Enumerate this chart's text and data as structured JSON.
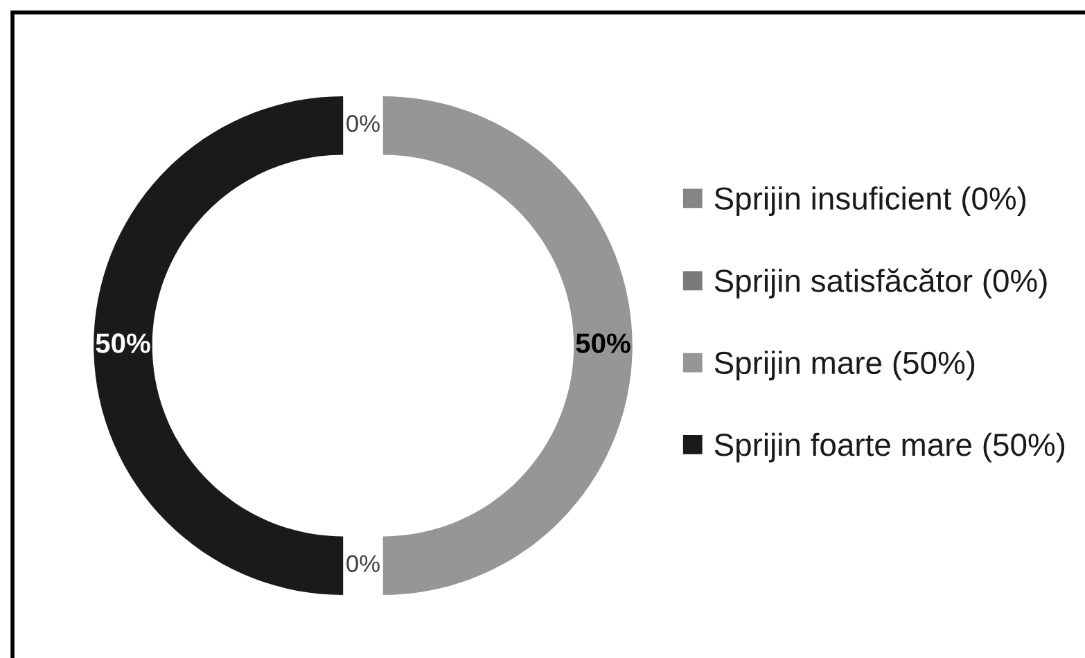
{
  "chart_data": {
    "type": "donut",
    "categories": [
      "Sprijin insuficient (0%)",
      "Sprijin satisfăcător (0%)",
      "Sprijin mare (50%)",
      "Sprijin foarte mare (50%)"
    ],
    "values": [
      0,
      0,
      50,
      50
    ],
    "colors": [
      "#858585",
      "#7a7a7a",
      "#969696",
      "#1a1a1a"
    ],
    "value_labels": [
      "0%",
      "0%",
      "50%",
      "50%"
    ],
    "legend": "right"
  }
}
